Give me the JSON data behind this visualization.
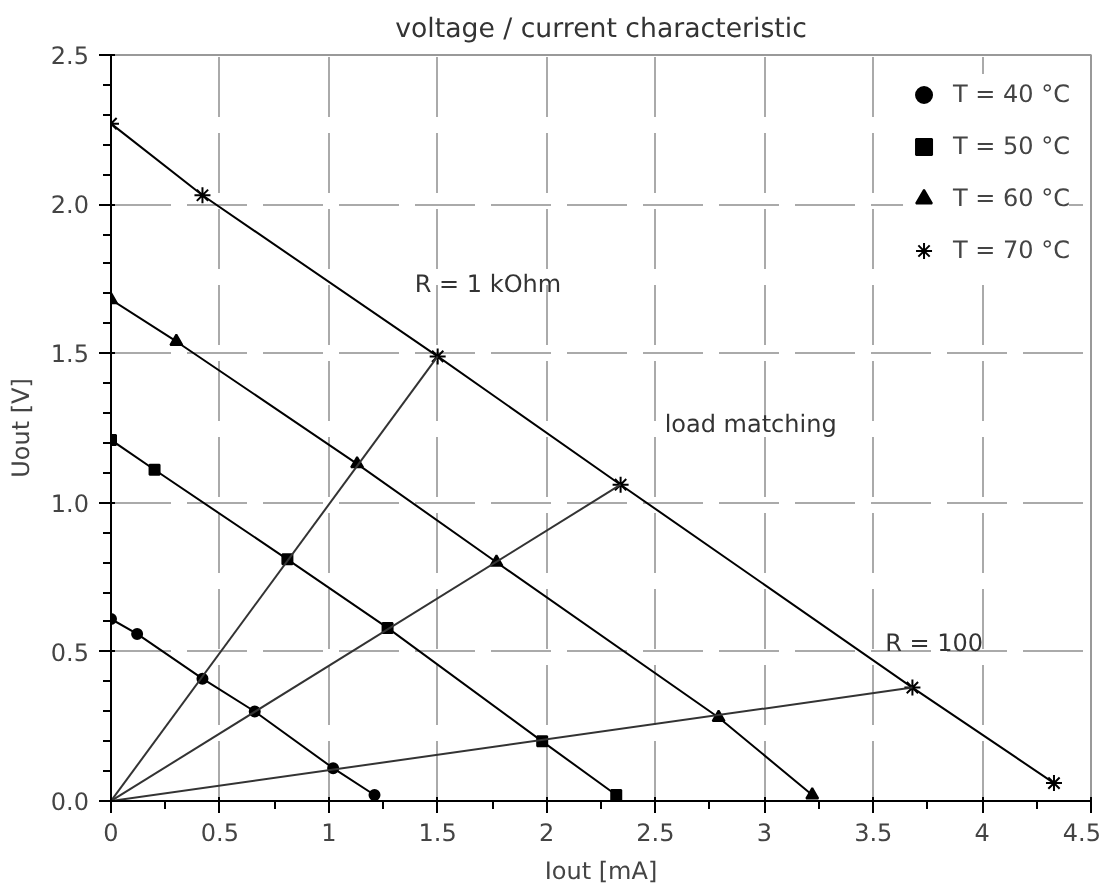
{
  "chart_data": {
    "type": "line",
    "title": "voltage / current characteristic",
    "xlabel": "Iout [mA]",
    "ylabel": "Uout [V]",
    "xlim": [
      0,
      4.5
    ],
    "xticks": [
      0,
      0.5,
      1,
      1.5,
      2,
      2.5,
      3,
      3.5,
      4,
      4.5
    ],
    "ylim": [
      0,
      2.5
    ],
    "yticks": [
      {
        "value": 0,
        "label": "0.0"
      },
      {
        "value": 0.5,
        "label": "0.5"
      },
      {
        "value": 1,
        "label": "1.0"
      },
      {
        "value": 1.5,
        "label": "1.5"
      },
      {
        "value": 2,
        "label": "2.0"
      },
      {
        "value": 2.5,
        "label": "2.5"
      }
    ],
    "grid": true,
    "legend": "top right",
    "series": [
      {
        "name": "T = 40 °C",
        "color": "#000000",
        "marker": "circle",
        "x": [
          0,
          0.12,
          0.42,
          0.66,
          1.02,
          1.21
        ],
        "values": [
          0.61,
          0.56,
          0.41,
          0.3,
          0.11,
          0.02
        ]
      },
      {
        "name": "T = 50 °C",
        "color": "#000000",
        "marker": "square",
        "x": [
          0,
          0.2,
          0.81,
          1.27,
          1.98,
          2.32
        ],
        "values": [
          1.21,
          1.11,
          0.81,
          0.58,
          0.2,
          0.02
        ]
      },
      {
        "name": "T = 60 °C",
        "color": "#000000",
        "marker": "triangle",
        "x": [
          0,
          0.3,
          1.13,
          1.77,
          2.79,
          3.22
        ],
        "values": [
          1.68,
          1.54,
          1.13,
          0.8,
          0.28,
          0.02
        ]
      },
      {
        "name": "T = 70 °C",
        "color": "#000000",
        "marker": "cross",
        "x": [
          0,
          0.42,
          1.5,
          2.34,
          3.68,
          4.33
        ],
        "values": [
          2.27,
          2.03,
          1.49,
          1.06,
          0.38,
          0.06
        ]
      },
      {
        "color": "#333333",
        "marker": "none",
        "x": [
          0,
          1.5
        ],
        "values": [
          0,
          1.49
        ]
      },
      {
        "color": "#333333",
        "marker": "none",
        "x": [
          0,
          2.34
        ],
        "values": [
          0,
          1.06
        ]
      },
      {
        "color": "#333333",
        "marker": "none",
        "x": [
          0,
          3.68
        ],
        "values": [
          0,
          0.38
        ]
      }
    ],
    "annotations": [
      "R = 1 kOhm",
      "load matching",
      "R = 100"
    ]
  }
}
